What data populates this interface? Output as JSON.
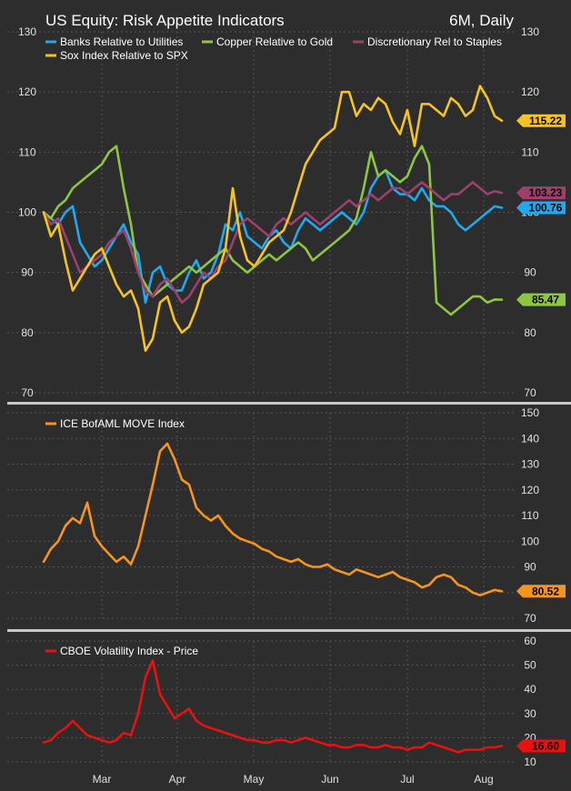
{
  "header": {
    "title": "US Equity: Risk Appetite Indicators",
    "period": "6M, Daily"
  },
  "months": [
    "Mar",
    "Apr",
    "May",
    "Jun",
    "Jul",
    "Aug"
  ],
  "chart_data": [
    {
      "type": "line",
      "panel": "top",
      "ylim": [
        70,
        130
      ],
      "yticks": [
        70,
        80,
        90,
        100,
        110,
        120,
        130
      ],
      "legend_position": "top-left",
      "grid": true,
      "series": [
        {
          "name": "Banks Relative to Utilities",
          "color": "#1fa9f0",
          "last": "100.76",
          "x": [
            0,
            2,
            4,
            6,
            8,
            10,
            12,
            14,
            16,
            18,
            20,
            22,
            24,
            26,
            28,
            30,
            32,
            34,
            36,
            38,
            40,
            42,
            44,
            46,
            48,
            50,
            52,
            54,
            56,
            58,
            60,
            62,
            64,
            66,
            68,
            70,
            72,
            74,
            76,
            78,
            80,
            82,
            84,
            86,
            88,
            90,
            92,
            94,
            96,
            98,
            100,
            102,
            104,
            106,
            108,
            110,
            112,
            114,
            116,
            118,
            120,
            122,
            124,
            126
          ],
          "values": [
            100,
            99,
            98,
            100,
            101,
            95,
            93,
            91,
            92,
            94,
            96,
            98,
            95,
            93,
            85,
            90,
            91,
            88,
            87,
            87,
            90,
            92,
            89,
            90,
            93,
            98,
            97,
            100,
            96,
            95,
            94,
            96,
            97,
            95,
            94,
            97,
            99,
            98,
            97,
            98,
            99,
            100,
            99,
            98,
            100,
            104,
            106,
            107,
            104,
            103,
            103,
            102,
            104,
            102,
            101,
            101,
            100,
            98,
            97,
            98,
            99,
            100,
            101,
            100.76
          ]
        },
        {
          "name": "Copper Relative to Gold",
          "color": "#8dc63f",
          "last": "85.47",
          "x": [
            0,
            2,
            4,
            6,
            8,
            10,
            12,
            14,
            16,
            18,
            20,
            22,
            24,
            26,
            28,
            30,
            32,
            34,
            36,
            38,
            40,
            42,
            44,
            46,
            48,
            50,
            52,
            54,
            56,
            58,
            60,
            62,
            64,
            66,
            68,
            70,
            72,
            74,
            76,
            78,
            80,
            82,
            84,
            86,
            88,
            90,
            92,
            94,
            96,
            98,
            100,
            102,
            104,
            106,
            108,
            110,
            112,
            114,
            116,
            118,
            120,
            122,
            124,
            126
          ],
          "values": [
            100,
            99,
            101,
            102,
            104,
            105,
            106,
            107,
            108,
            110,
            111,
            104,
            98,
            90,
            88,
            86,
            87,
            88,
            89,
            90,
            91,
            90,
            91,
            92,
            93,
            94,
            92,
            91,
            90,
            91,
            92,
            93,
            92,
            93,
            94,
            95,
            94,
            92,
            93,
            94,
            95,
            96,
            97,
            99,
            104,
            110,
            106,
            107,
            106,
            105,
            106,
            109,
            111,
            108,
            85,
            84,
            83,
            84,
            85,
            86,
            86,
            85,
            85.5,
            85.47
          ]
        },
        {
          "name": "Discretionary Rel to Staples",
          "color": "#9e3f6e",
          "last": "103.23",
          "x": [
            0,
            2,
            4,
            6,
            8,
            10,
            12,
            14,
            16,
            18,
            20,
            22,
            24,
            26,
            28,
            30,
            32,
            34,
            36,
            38,
            40,
            42,
            44,
            46,
            48,
            50,
            52,
            54,
            56,
            58,
            60,
            62,
            64,
            66,
            68,
            70,
            72,
            74,
            76,
            78,
            80,
            82,
            84,
            86,
            88,
            90,
            92,
            94,
            96,
            98,
            100,
            102,
            104,
            106,
            108,
            110,
            112,
            114,
            116,
            118,
            120,
            122,
            124,
            126
          ],
          "values": [
            100,
            98,
            99,
            96,
            93,
            90,
            91,
            92,
            93,
            95,
            96,
            97,
            94,
            90,
            87,
            86,
            88,
            89,
            87,
            85,
            86,
            88,
            90,
            89,
            91,
            92,
            95,
            98,
            99,
            98,
            97,
            96,
            98,
            99,
            98,
            99,
            100,
            99,
            98,
            99,
            100,
            101,
            102,
            101,
            102,
            103,
            102,
            103,
            104,
            104,
            103,
            104,
            105,
            104,
            103,
            102,
            103,
            103,
            104,
            105,
            104,
            103,
            103.5,
            103.23
          ]
        },
        {
          "name": "Sox Index Relative to SPX",
          "color": "#f7c31e",
          "last": "115.22",
          "x": [
            0,
            2,
            4,
            6,
            8,
            10,
            12,
            14,
            16,
            18,
            20,
            22,
            24,
            26,
            28,
            30,
            32,
            34,
            36,
            38,
            40,
            42,
            44,
            46,
            48,
            50,
            52,
            54,
            56,
            58,
            60,
            62,
            64,
            66,
            68,
            70,
            72,
            74,
            76,
            78,
            80,
            82,
            84,
            86,
            88,
            90,
            92,
            94,
            96,
            98,
            100,
            102,
            104,
            106,
            108,
            110,
            112,
            114,
            116,
            118,
            120,
            122,
            124,
            126
          ],
          "values": [
            100,
            96,
            98,
            92,
            87,
            89,
            91,
            93,
            94,
            91,
            88,
            86,
            87,
            84,
            77,
            79,
            85,
            86,
            82,
            80,
            81,
            84,
            88,
            89,
            90,
            94,
            104,
            96,
            92,
            91,
            93,
            95,
            96,
            97,
            100,
            104,
            108,
            110,
            112,
            113,
            114,
            120,
            120,
            116,
            118,
            117,
            119,
            118,
            115,
            113,
            117,
            111,
            118,
            118,
            117,
            116,
            119,
            118,
            116,
            117,
            121,
            119,
            116,
            115.22
          ]
        }
      ]
    },
    {
      "type": "line",
      "panel": "middle",
      "ylim": [
        70,
        150
      ],
      "yticks": [
        70,
        80,
        90,
        100,
        110,
        120,
        130,
        140,
        150
      ],
      "legend_position": "top-left",
      "grid": true,
      "series": [
        {
          "name": "ICE BofAML MOVE Index",
          "color": "#f7941d",
          "last": "80.52",
          "x": [
            0,
            2,
            4,
            6,
            8,
            10,
            12,
            14,
            16,
            18,
            20,
            22,
            24,
            26,
            28,
            30,
            32,
            34,
            36,
            38,
            40,
            42,
            44,
            46,
            48,
            50,
            52,
            54,
            56,
            58,
            60,
            62,
            64,
            66,
            68,
            70,
            72,
            74,
            76,
            78,
            80,
            82,
            84,
            86,
            88,
            90,
            92,
            94,
            96,
            98,
            100,
            102,
            104,
            106,
            108,
            110,
            112,
            114,
            116,
            118,
            120,
            122,
            124,
            126
          ],
          "values": [
            92,
            97,
            100,
            106,
            109,
            107,
            115,
            102,
            98,
            95,
            92,
            94,
            91,
            98,
            110,
            122,
            135,
            138,
            132,
            124,
            122,
            113,
            110,
            108,
            110,
            106,
            103,
            101,
            100,
            99,
            97,
            96,
            94,
            93,
            92,
            93,
            91,
            90,
            90,
            91,
            89,
            88,
            87,
            89,
            88,
            87,
            86,
            87,
            88,
            86,
            85,
            84,
            82,
            83,
            86,
            87,
            86,
            83,
            82,
            80,
            79,
            80,
            81,
            80.52
          ]
        }
      ]
    },
    {
      "type": "line",
      "panel": "bottom",
      "ylim": [
        10,
        60
      ],
      "yticks": [
        10,
        20,
        30,
        40,
        50,
        60
      ],
      "legend_position": "top-left",
      "grid": true,
      "series": [
        {
          "name": "CBOE Volatility Index - Price",
          "color": "#e8110f",
          "last": "16.60",
          "x": [
            0,
            2,
            4,
            6,
            8,
            10,
            12,
            14,
            16,
            18,
            20,
            22,
            24,
            26,
            28,
            30,
            32,
            34,
            36,
            38,
            40,
            42,
            44,
            46,
            48,
            50,
            52,
            54,
            56,
            58,
            60,
            62,
            64,
            66,
            68,
            70,
            72,
            74,
            76,
            78,
            80,
            82,
            84,
            86,
            88,
            90,
            92,
            94,
            96,
            98,
            100,
            102,
            104,
            106,
            108,
            110,
            112,
            114,
            116,
            118,
            120,
            122,
            124,
            126
          ],
          "values": [
            18,
            19,
            22,
            24,
            27,
            24,
            21,
            20,
            19,
            18,
            19,
            22,
            21,
            30,
            45,
            52,
            38,
            33,
            28,
            30,
            32,
            27,
            25,
            24,
            23,
            22,
            21,
            20,
            19,
            19,
            18,
            18,
            19,
            19,
            18,
            19,
            20,
            19,
            18,
            17,
            17,
            16,
            16,
            17,
            17,
            16,
            16,
            17,
            16,
            16,
            15,
            16,
            16,
            18,
            17,
            16,
            15,
            14,
            15,
            15,
            15,
            16,
            16,
            16.6
          ]
        }
      ]
    }
  ]
}
